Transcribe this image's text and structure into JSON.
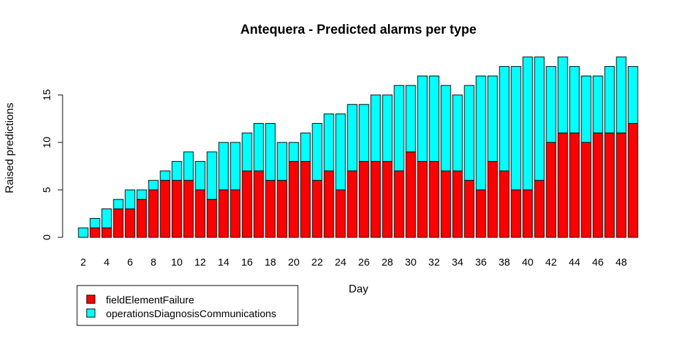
{
  "chart_data": {
    "type": "bar",
    "stacked": true,
    "title": "Antequera - Predicted alarms per type",
    "xlabel": "Day",
    "ylabel": "Raised predictions",
    "ylim": [
      0,
      19
    ],
    "y_ticks": [
      0,
      5,
      10,
      15
    ],
    "x_tick_labels": [
      "2",
      "4",
      "6",
      "8",
      "10",
      "12",
      "14",
      "16",
      "18",
      "20",
      "22",
      "24",
      "26",
      "28",
      "30",
      "32",
      "34",
      "36",
      "38",
      "40",
      "42",
      "44",
      "46",
      "48"
    ],
    "categories": [
      2,
      3,
      4,
      5,
      6,
      7,
      8,
      9,
      10,
      11,
      12,
      13,
      14,
      15,
      16,
      17,
      18,
      19,
      20,
      21,
      22,
      23,
      24,
      25,
      26,
      27,
      28,
      29,
      30,
      31,
      32,
      33,
      34,
      35,
      36,
      37,
      38,
      39,
      40,
      41,
      42,
      43,
      44,
      45,
      46,
      47,
      48,
      49
    ],
    "series": [
      {
        "name": "fieldElementFailure",
        "color": "#ff0000",
        "values": [
          0,
          1,
          1,
          3,
          3,
          4,
          5,
          6,
          6,
          6,
          5,
          4,
          5,
          5,
          7,
          7,
          6,
          6,
          8,
          8,
          6,
          7,
          5,
          7,
          8,
          8,
          8,
          7,
          9,
          8,
          8,
          7,
          7,
          6,
          5,
          8,
          7,
          5,
          5,
          6,
          10,
          11,
          11,
          10,
          11,
          11,
          11,
          12
        ]
      },
      {
        "name": "operationsDiagnosisCommunications",
        "color": "#00ffff",
        "values": [
          1,
          1,
          2,
          1,
          2,
          1,
          1,
          1,
          2,
          3,
          3,
          5,
          5,
          5,
          4,
          5,
          6,
          4,
          2,
          3,
          6,
          6,
          8,
          7,
          6,
          7,
          7,
          9,
          7,
          9,
          9,
          9,
          8,
          10,
          12,
          9,
          11,
          13,
          14,
          13,
          8,
          8,
          7,
          7,
          6,
          7,
          8,
          6
        ]
      }
    ],
    "legend": {
      "position": "bottom-left",
      "entries": [
        "fieldElementFailure",
        "operationsDiagnosisCommunications"
      ]
    },
    "grid": false
  }
}
